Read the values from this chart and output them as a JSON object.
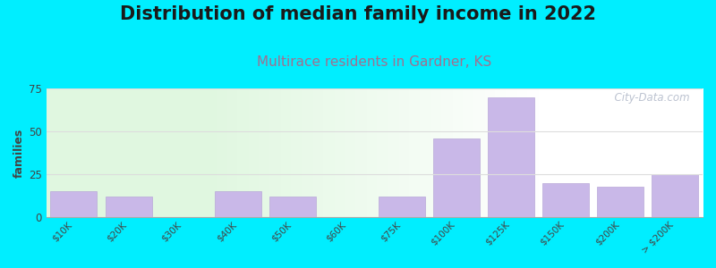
{
  "title": "Distribution of median family income in 2022",
  "subtitle": "Multirace residents in Gardner, KS",
  "ylabel": "families",
  "categories": [
    "$10K",
    "$20K",
    "$30K",
    "$40K",
    "$50K",
    "$60K",
    "$75K",
    "$100K",
    "$125K",
    "$150K",
    "$200K",
    "> $200K"
  ],
  "values": [
    15,
    12,
    0,
    15,
    12,
    0,
    12,
    46,
    70,
    20,
    18,
    25
  ],
  "bar_color": "#c9b8e8",
  "bar_edge_color": "#b8a8d8",
  "background_outer": "#00eeff",
  "ylim": [
    0,
    75
  ],
  "yticks": [
    0,
    25,
    50,
    75
  ],
  "title_fontsize": 15,
  "subtitle_fontsize": 11,
  "subtitle_color": "#a07090",
  "ylabel_fontsize": 9,
  "grid_color": "#dddddd",
  "watermark_text": "  City-Data.com",
  "watermark_color": "#b0b8c8"
}
